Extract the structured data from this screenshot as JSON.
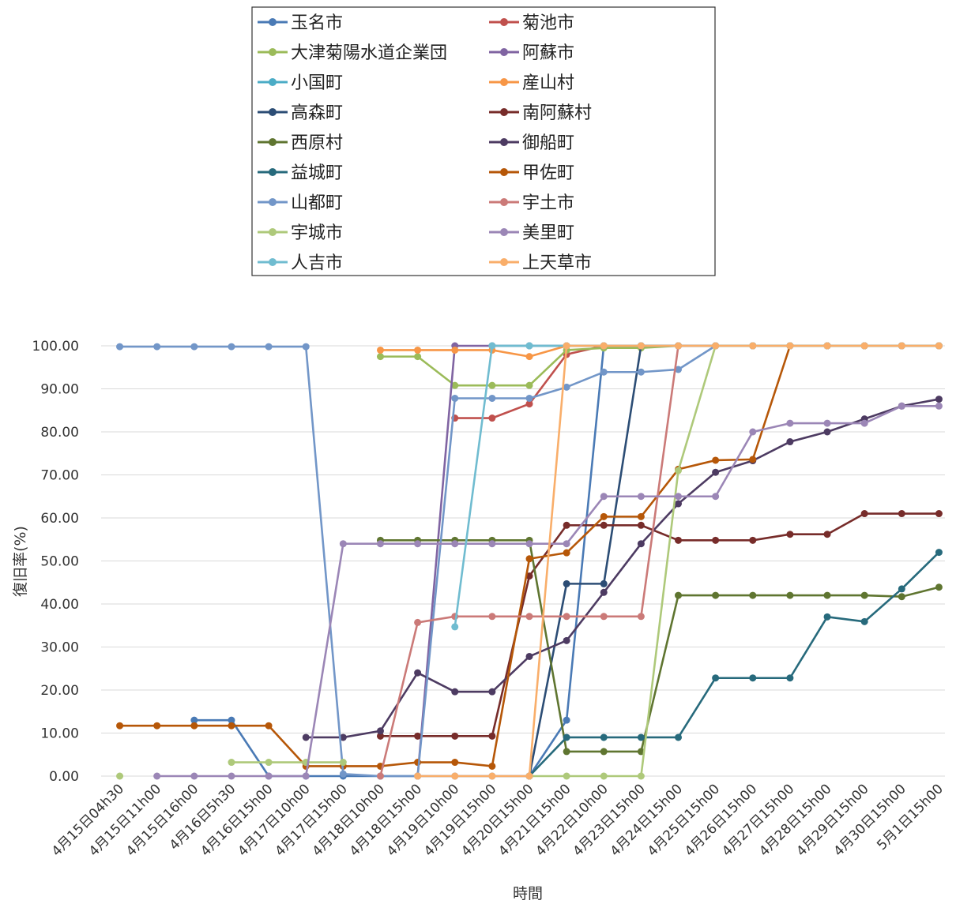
{
  "chart_data": {
    "type": "line",
    "title": "",
    "xlabel": "時間",
    "ylabel": "復旧率(%)",
    "ylim": [
      0,
      100
    ],
    "yticks": [
      "0.00",
      "10.00",
      "20.00",
      "30.00",
      "40.00",
      "50.00",
      "60.00",
      "70.00",
      "80.00",
      "90.00",
      "100.00"
    ],
    "grid": true,
    "legend_position": "top",
    "categories": [
      "4月15日04h30",
      "4月15日11h00",
      "4月15日16h00",
      "4月16日5h30",
      "4月16日15h00",
      "4月17日10h00",
      "4月17日15h00",
      "4月18日10h00",
      "4月18日15h00",
      "4月19日10h00",
      "4月19日15h00",
      "4月20日15h00",
      "4月21日15h00",
      "4月22日10h00",
      "4月23日15h00",
      "4月24日15h00",
      "4月25日15h00",
      "4月26日15h00",
      "4月27日15h00",
      "4月28日15h00",
      "4月29日15h00",
      "4月30日15h00",
      "5月1日15h00"
    ],
    "series": [
      {
        "name": "玉名市",
        "color": "#4a7ab5",
        "values": [
          null,
          null,
          13,
          13,
          0,
          0,
          0,
          0,
          0,
          0,
          0,
          0,
          13,
          100,
          100,
          100,
          100,
          100,
          100,
          100,
          100,
          100,
          100
        ]
      },
      {
        "name": "菊池市",
        "color": "#c0504d",
        "values": [
          null,
          null,
          null,
          null,
          null,
          null,
          null,
          null,
          null,
          83.2,
          83.2,
          86.5,
          98,
          100,
          100,
          100,
          100,
          100,
          100,
          100,
          100,
          100,
          100
        ]
      },
      {
        "name": "大津菊陽水道企業団",
        "color": "#9bbb59",
        "values": [
          null,
          null,
          null,
          null,
          null,
          null,
          null,
          97.5,
          97.5,
          90.8,
          90.8,
          90.8,
          99,
          99.5,
          99.5,
          100,
          100,
          100,
          100,
          100,
          100,
          100,
          100
        ]
      },
      {
        "name": "阿蘇市",
        "color": "#8064a2",
        "values": [
          null,
          null,
          null,
          null,
          null,
          null,
          null,
          null,
          0,
          100,
          100,
          100,
          100,
          100,
          100,
          100,
          100,
          100,
          100,
          100,
          100,
          100,
          100
        ]
      },
      {
        "name": "小国町",
        "color": "#4bacc6",
        "values": [
          null,
          null,
          null,
          null,
          null,
          null,
          null,
          null,
          null,
          null,
          100,
          100,
          100,
          100,
          100,
          100,
          100,
          100,
          100,
          100,
          100,
          100,
          100
        ]
      },
      {
        "name": "産山村",
        "color": "#f79646",
        "values": [
          null,
          null,
          null,
          null,
          null,
          null,
          null,
          99,
          99,
          99,
          99,
          97.5,
          100,
          100,
          100,
          100,
          100,
          100,
          100,
          100,
          100,
          100,
          100
        ]
      },
      {
        "name": "高森町",
        "color": "#2c4d75",
        "values": [
          null,
          null,
          null,
          null,
          null,
          null,
          null,
          null,
          null,
          null,
          null,
          0,
          44.7,
          44.7,
          100,
          100,
          100,
          100,
          100,
          100,
          100,
          100,
          100
        ]
      },
      {
        "name": "南阿蘇村",
        "color": "#772c2a",
        "values": [
          null,
          null,
          null,
          null,
          null,
          null,
          null,
          9.3,
          9.3,
          9.3,
          9.3,
          46.5,
          58.3,
          58.3,
          58.3,
          54.8,
          54.8,
          54.8,
          56.2,
          56.2,
          61,
          61,
          61
        ]
      },
      {
        "name": "西原村",
        "color": "#5f7530",
        "values": [
          null,
          null,
          null,
          null,
          null,
          null,
          null,
          54.8,
          54.8,
          54.8,
          54.8,
          54.8,
          5.7,
          5.7,
          5.7,
          42,
          42,
          42,
          42,
          42,
          42,
          41.7,
          43.9
        ]
      },
      {
        "name": "御船町",
        "color": "#4d3b62",
        "values": [
          null,
          null,
          null,
          null,
          null,
          9,
          9,
          10.5,
          24,
          19.6,
          19.6,
          27.8,
          31.5,
          42.7,
          54,
          63.3,
          70.6,
          73.3,
          77.7,
          80,
          83,
          86,
          87.6
        ]
      },
      {
        "name": "益城町",
        "color": "#276a7c",
        "values": [
          null,
          null,
          null,
          null,
          null,
          null,
          null,
          null,
          null,
          null,
          null,
          0,
          9,
          9,
          9,
          9,
          22.8,
          22.8,
          22.8,
          37,
          35.9,
          43.5,
          52
        ]
      },
      {
        "name": "甲佐町",
        "color": "#b65708",
        "values": [
          11.7,
          11.7,
          11.7,
          11.7,
          11.7,
          2.3,
          2.3,
          2.3,
          3.2,
          3.2,
          2.3,
          50.5,
          51.9,
          60.3,
          60.3,
          71.3,
          73.4,
          73.6,
          100,
          100,
          100,
          100,
          100
        ]
      },
      {
        "name": "山都町",
        "color": "#7296c8",
        "values": [
          99.8,
          99.8,
          99.8,
          99.8,
          99.8,
          99.8,
          0.5,
          0,
          0,
          87.8,
          87.8,
          87.8,
          90.4,
          93.9,
          93.9,
          94.5,
          100,
          100,
          100,
          100,
          100,
          100,
          100
        ]
      },
      {
        "name": "宇土市",
        "color": "#cb7a78",
        "values": [
          null,
          null,
          null,
          null,
          null,
          null,
          null,
          0,
          35.7,
          37.1,
          37.1,
          37.1,
          37.1,
          37.1,
          37.1,
          100,
          100,
          100,
          100,
          100,
          100,
          100,
          100
        ]
      },
      {
        "name": "宇城市",
        "color": "#aec97a",
        "values": [
          0,
          null,
          null,
          3.2,
          3.2,
          3.2,
          3.2,
          null,
          null,
          null,
          null,
          0,
          0,
          0,
          0,
          71,
          100,
          100,
          100,
          100,
          100,
          100,
          100
        ]
      },
      {
        "name": "美里町",
        "color": "#9b86b6",
        "values": [
          null,
          0,
          0,
          0,
          0,
          0,
          54,
          54,
          54,
          54,
          54,
          54,
          54,
          65,
          65,
          65,
          65,
          80,
          82,
          82,
          82,
          86,
          86
        ]
      },
      {
        "name": "人吉市",
        "color": "#70bcd0",
        "values": [
          null,
          null,
          null,
          null,
          null,
          null,
          null,
          null,
          null,
          34.7,
          100,
          100,
          100,
          100,
          100,
          100,
          100,
          100,
          100,
          100,
          100,
          100,
          100
        ]
      },
      {
        "name": "上天草市",
        "color": "#f9ae6a",
        "values": [
          null,
          null,
          null,
          null,
          null,
          null,
          null,
          null,
          0,
          0,
          0,
          0,
          100,
          100,
          100,
          100,
          100,
          100,
          100,
          100,
          100,
          100,
          100
        ]
      }
    ]
  }
}
